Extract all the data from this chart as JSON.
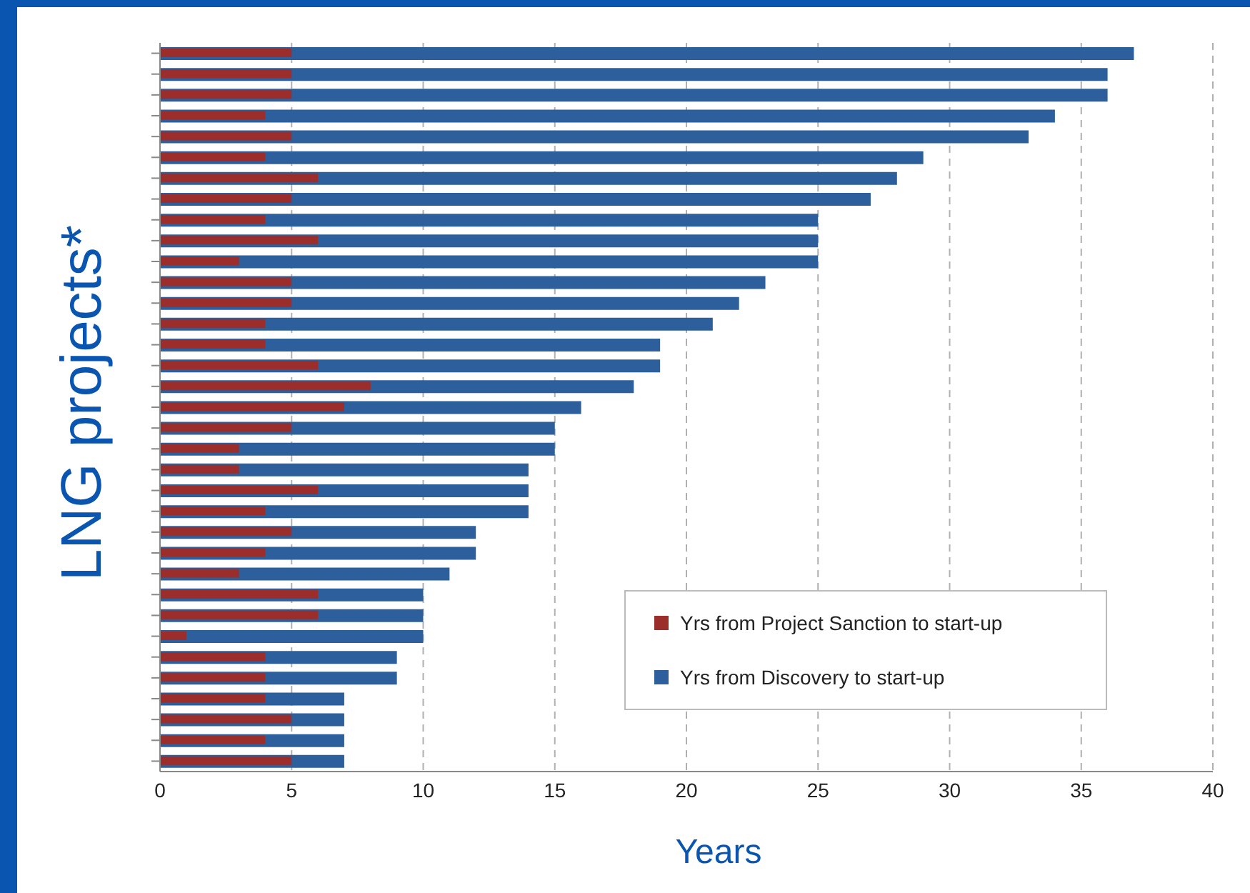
{
  "chart_data": {
    "type": "bar",
    "orientation": "horizontal",
    "xlabel": "Years",
    "ylabel": "LNG projects*",
    "categories": [
      null,
      null,
      null,
      null,
      null,
      null,
      null,
      null,
      null,
      null,
      null,
      null,
      null,
      null,
      null,
      null,
      null,
      null,
      null,
      null,
      null,
      null,
      null,
      null,
      null,
      null,
      null,
      null,
      null,
      null,
      null,
      null,
      null,
      null,
      null
    ],
    "series": [
      {
        "name": "Yrs from Project Sanction to start-up",
        "color": "#9b2d2a",
        "values": [
          5,
          5,
          5,
          4,
          5,
          4,
          6,
          5,
          4,
          6,
          3,
          5,
          5,
          4,
          4,
          6,
          8,
          7,
          5,
          3,
          3,
          6,
          4,
          5,
          4,
          3,
          6,
          6,
          1,
          4,
          4,
          4,
          5,
          4,
          5
        ]
      },
      {
        "name": "Yrs from Discovery to start-up",
        "color": "#2c5f9b",
        "values": [
          37,
          36,
          36,
          34,
          33,
          29,
          28,
          27,
          25,
          25,
          25,
          23,
          22,
          21,
          19,
          19,
          18,
          16,
          15,
          15,
          14,
          14,
          14,
          12,
          12,
          11,
          10,
          10,
          10,
          9,
          9,
          7,
          7,
          7,
          7
        ]
      }
    ],
    "xlim": [
      0,
      40
    ],
    "xticks": [
      0,
      5,
      10,
      15,
      20,
      25,
      30,
      35,
      40
    ],
    "grid": "x",
    "legend": "bottom right"
  }
}
